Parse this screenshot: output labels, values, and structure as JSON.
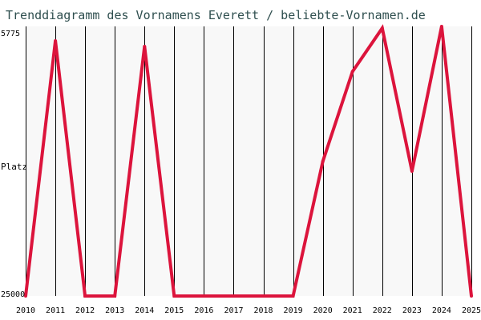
{
  "chart_data": {
    "type": "line",
    "title": "Trenddiagramm des Vornamens Everett / beliebte-Vornamen.de",
    "xlabel": "",
    "ylabel": "Platz",
    "y_axis_inverted": true,
    "ylim": [
      25000,
      5775
    ],
    "y_ticks": [
      "5775",
      "25000"
    ],
    "grid": "vertical",
    "categories": [
      "2010",
      "2011",
      "2012",
      "2013",
      "2014",
      "2015",
      "2016",
      "2017",
      "2018",
      "2019",
      "2020",
      "2021",
      "2022",
      "2023",
      "2024",
      "2025"
    ],
    "series": [
      {
        "color": "#dc143c",
        "values": [
          25000,
          6800,
          25000,
          25000,
          7200,
          25000,
          25000,
          25000,
          25000,
          25000,
          15400,
          9000,
          5900,
          16100,
          5775,
          25000
        ]
      }
    ],
    "colors": {
      "background_plot": "#f8f8f8",
      "title": "#2f4f4f",
      "grid": "#000000"
    }
  }
}
